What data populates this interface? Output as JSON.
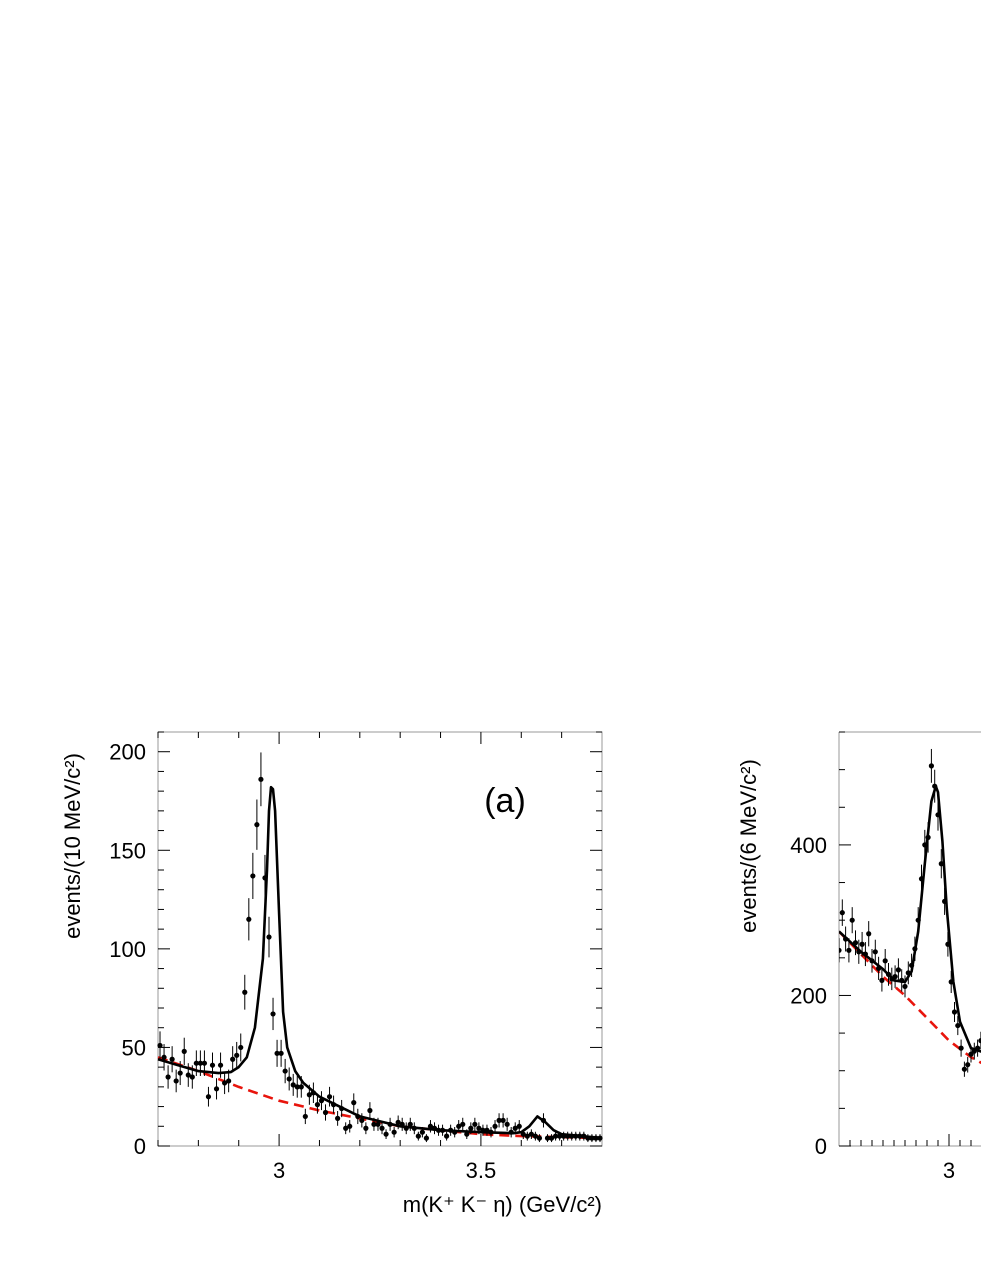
{
  "chart_data": [
    {
      "type": "scatter",
      "panel_label": "(a)",
      "ylabel": "events/(10 MeV/c²)",
      "xlabel": "m(K⁺ K⁻ η) (GeV/c²)",
      "xlim": [
        2.7,
        3.8
      ],
      "ylim": [
        0,
        210
      ],
      "x_ticks": [
        3,
        3.5
      ],
      "x_tick_labels": [
        "3",
        "3.5"
      ],
      "y_ticks": [
        0,
        50,
        100,
        150,
        200
      ],
      "y_tick_labels": [
        "0",
        "50",
        "100",
        "150",
        "200"
      ],
      "series": [
        {
          "style": "points-with-error-bars",
          "x": [
            2.705,
            2.715,
            2.725,
            2.735,
            2.745,
            2.755,
            2.765,
            2.775,
            2.785,
            2.795,
            2.805,
            2.815,
            2.825,
            2.835,
            2.845,
            2.855,
            2.865,
            2.875,
            2.885,
            2.895,
            2.905,
            2.915,
            2.925,
            2.935,
            2.945,
            2.955,
            2.965,
            2.975,
            2.985,
            2.995,
            3.005,
            3.015,
            3.025,
            3.035,
            3.045,
            3.055,
            3.065,
            3.075,
            3.085,
            3.095,
            3.105,
            3.115,
            3.125,
            3.135,
            3.145,
            3.155,
            3.165,
            3.175,
            3.185,
            3.195,
            3.205,
            3.215,
            3.225,
            3.235,
            3.245,
            3.255,
            3.265,
            3.275,
            3.285,
            3.295,
            3.305,
            3.315,
            3.325,
            3.335,
            3.345,
            3.355,
            3.365,
            3.375,
            3.385,
            3.395,
            3.405,
            3.415,
            3.425,
            3.435,
            3.445,
            3.455,
            3.465,
            3.475,
            3.485,
            3.495,
            3.505,
            3.515,
            3.525,
            3.535,
            3.545,
            3.555,
            3.565,
            3.575,
            3.585,
            3.595,
            3.605,
            3.615,
            3.625,
            3.635,
            3.645,
            3.655,
            3.665,
            3.675,
            3.685,
            3.695,
            3.705,
            3.715,
            3.725,
            3.735,
            3.745,
            3.755,
            3.765,
            3.775,
            3.785,
            3.795
          ],
          "y": [
            51,
            45,
            35,
            44,
            33,
            37,
            48,
            36,
            35,
            42,
            42,
            42,
            25,
            41,
            29,
            41,
            32,
            33,
            44,
            46,
            50,
            78,
            115,
            137,
            163,
            186,
            136,
            106,
            67,
            47,
            47,
            38,
            34,
            31,
            30,
            30,
            15,
            26,
            27,
            21,
            23,
            17,
            25,
            21,
            14,
            19,
            9,
            10,
            22,
            15,
            13,
            9,
            18,
            11,
            11,
            9,
            6,
            11,
            7,
            12,
            11,
            9,
            11,
            9,
            5,
            7,
            4,
            10,
            9,
            8,
            8,
            5,
            8,
            7,
            10,
            11,
            6,
            9,
            11,
            9,
            8,
            8,
            7,
            10,
            13,
            13,
            11,
            7,
            9,
            10,
            6,
            5,
            6,
            5,
            4,
            13,
            4,
            4,
            5,
            5,
            5,
            5,
            5,
            5,
            5,
            5,
            4,
            4,
            4,
            4
          ],
          "error": "sqrt"
        },
        {
          "style": "solid-black-fit-curve",
          "x": [
            2.7,
            2.75,
            2.8,
            2.85,
            2.88,
            2.9,
            2.92,
            2.94,
            2.96,
            2.97,
            2.975,
            2.98,
            2.985,
            2.99,
            3.0,
            3.01,
            3.02,
            3.04,
            3.06,
            3.1,
            3.15,
            3.2,
            3.3,
            3.4,
            3.5,
            3.58,
            3.6,
            3.62,
            3.64,
            3.66,
            3.68,
            3.7,
            3.8
          ],
          "y": [
            44,
            41,
            38,
            37,
            37.5,
            40,
            45,
            60,
            95,
            140,
            170,
            182,
            181,
            170,
            118,
            68,
            50,
            38,
            32,
            25,
            20,
            15,
            10,
            8,
            7,
            6.5,
            7,
            10,
            15,
            12,
            8,
            6,
            4
          ]
        },
        {
          "style": "dashed-red-background-curve",
          "x": [
            2.7,
            2.8,
            2.9,
            3.0,
            3.1,
            3.2,
            3.3,
            3.4,
            3.5,
            3.6,
            3.7,
            3.8
          ],
          "y": [
            45,
            38,
            30,
            23,
            18,
            14,
            10,
            8,
            6,
            5,
            4.5,
            4
          ]
        }
      ]
    },
    {
      "type": "scatter",
      "panel_label": "",
      "ylabel": "events/(6 MeV/c²)",
      "xlabel": "",
      "xlim": [
        2.9,
        3.03
      ],
      "ylim": [
        0,
        550
      ],
      "x_ticks": [
        3
      ],
      "x_tick_labels": [
        "3"
      ],
      "y_ticks": [
        0,
        200,
        400
      ],
      "y_tick_labels": [
        "0",
        "200",
        "400"
      ],
      "series": [
        {
          "style": "points-with-error-bars",
          "x": [
            2.9,
            2.903,
            2.906,
            2.909,
            2.912,
            2.915,
            2.918,
            2.921,
            2.924,
            2.927,
            2.93,
            2.933,
            2.936,
            2.939,
            2.942,
            2.945,
            2.948,
            2.951,
            2.954,
            2.957,
            2.96,
            2.963,
            2.966,
            2.969,
            2.972,
            2.975,
            2.978,
            2.981,
            2.984,
            2.987,
            2.99,
            2.993,
            2.996,
            2.999,
            3.002,
            3.005,
            3.008,
            3.011,
            3.014,
            3.017,
            3.02,
            3.023,
            3.026,
            3.029
          ],
          "y": [
            260,
            310,
            275,
            260,
            300,
            270,
            258,
            268,
            255,
            282,
            246,
            258,
            236,
            220,
            246,
            228,
            222,
            225,
            234,
            220,
            212,
            230,
            240,
            262,
            300,
            355,
            400,
            410,
            505,
            478,
            440,
            375,
            325,
            268,
            218,
            178,
            160,
            130,
            102,
            108,
            122,
            126,
            130,
            140
          ],
          "error": "sqrt"
        },
        {
          "style": "solid-black-fit-curve",
          "x": [
            2.9,
            2.92,
            2.94,
            2.95,
            2.96,
            2.966,
            2.972,
            2.978,
            2.984,
            2.988,
            2.99,
            2.994,
            2.998,
            3.004,
            3.01,
            3.02,
            3.03
          ],
          "y": [
            285,
            258,
            235,
            220,
            218,
            232,
            285,
            375,
            458,
            478,
            470,
            405,
            315,
            218,
            165,
            130,
            125
          ]
        },
        {
          "style": "dashed-red-background-curve",
          "x": [
            2.9,
            2.92,
            2.94,
            2.96,
            2.98,
            3.0,
            3.02,
            3.03
          ],
          "y": [
            285,
            255,
            225,
            200,
            170,
            140,
            118,
            110
          ]
        }
      ]
    }
  ]
}
